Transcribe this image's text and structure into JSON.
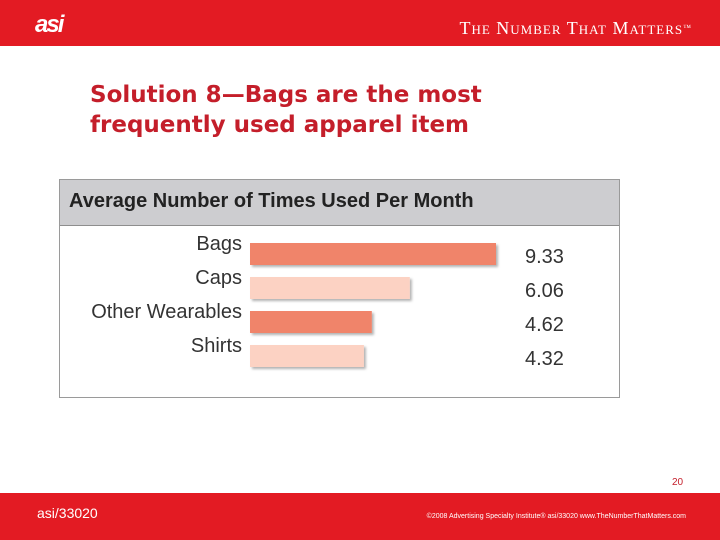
{
  "header": {
    "logo_text": "asi",
    "tagline": "The Number That Matters",
    "trademark": "™"
  },
  "slide": {
    "title_line1": "Solution 8—Bags are the most",
    "title_line2": "frequently used apparel item",
    "page_number": "20"
  },
  "footer": {
    "left_text": "asi/33020",
    "right_text": "©2008 Advertising Specialty Institute® asi/33020 www.TheNumberThatMatters.com"
  },
  "colors": {
    "brand_red": "#e31b23",
    "title_red": "#c41e2a",
    "bar_dark": "#f0846a",
    "bar_light": "#fcd2c3"
  },
  "chart_data": {
    "type": "bar",
    "orientation": "horizontal",
    "title": "Average Number of Times Used Per Month",
    "categories": [
      "Bags",
      "Caps",
      "Other Wearables",
      "Shirts"
    ],
    "values": [
      9.33,
      6.06,
      4.62,
      4.32
    ],
    "value_labels": [
      "9.33",
      "6.06",
      "4.62",
      "4.32"
    ],
    "bar_colors": [
      "#f0846a",
      "#fcd2c3",
      "#f0846a",
      "#fcd2c3"
    ],
    "xlim": [
      0,
      9.33
    ],
    "grid": false,
    "legend": "none"
  }
}
